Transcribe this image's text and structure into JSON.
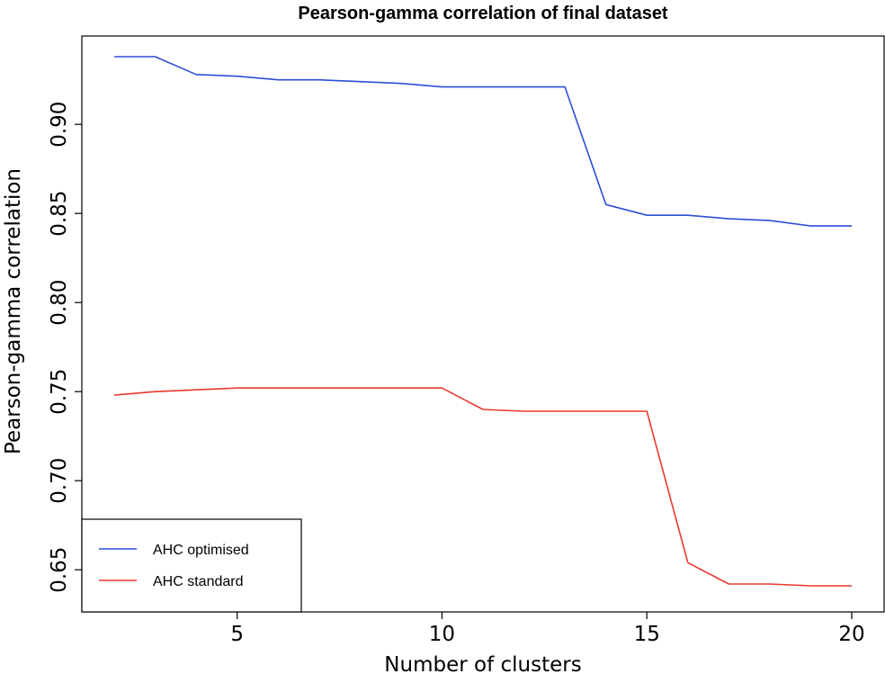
{
  "chart_data": {
    "type": "line",
    "title": "Pearson-gamma correlation of final dataset",
    "xlabel": "Number of clusters",
    "ylabel": "Pearson-gamma correlation",
    "xlim": [
      2,
      20
    ],
    "ylim": [
      0.641,
      0.94
    ],
    "xticks": [
      "5",
      "10",
      "15",
      "20"
    ],
    "yticks": [
      "0.65",
      "0.70",
      "0.75",
      "0.80",
      "0.85",
      "0.90"
    ],
    "x": [
      2,
      3,
      4,
      5,
      6,
      7,
      8,
      9,
      10,
      11,
      12,
      13,
      14,
      15,
      16,
      17,
      18,
      19,
      20
    ],
    "series": [
      {
        "name": "AHC optimised",
        "color": "#2c4fd8",
        "values": [
          0.938,
          0.938,
          0.928,
          0.927,
          0.925,
          0.925,
          0.924,
          0.923,
          0.921,
          0.921,
          0.921,
          0.921,
          0.855,
          0.849,
          0.849,
          0.847,
          0.846,
          0.843,
          0.843
        ]
      },
      {
        "name": "AHC standard",
        "color": "#e8392e",
        "values": [
          0.748,
          0.75,
          0.751,
          0.752,
          0.752,
          0.752,
          0.752,
          0.752,
          0.752,
          0.74,
          0.739,
          0.739,
          0.739,
          0.739,
          0.654,
          0.642,
          0.642,
          0.641,
          0.641
        ]
      }
    ],
    "grid": false,
    "legend": "bottom-left"
  }
}
